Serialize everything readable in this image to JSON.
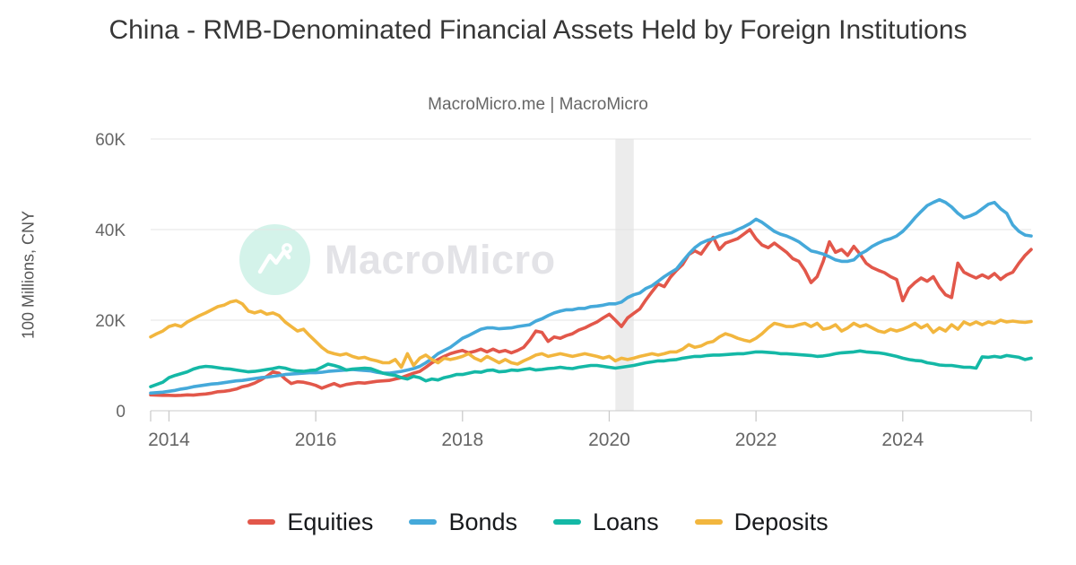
{
  "title": "China - RMB-Denominated Financial Assets Held by Foreign Institutions",
  "subtitle": "MacroMicro.me | MacroMicro",
  "watermark": "MacroMicro",
  "chart_data": {
    "type": "line",
    "title": "China - RMB-Denominated Financial Assets Held by Foreign Institutions",
    "subtitle": "MacroMicro.me | MacroMicro",
    "ylabel": "100 Millions, CNY",
    "xlabel": "",
    "frequency": "monthly",
    "x_start": "2013-10",
    "x_end": "2025-10",
    "ylim": [
      0,
      60000
    ],
    "grid": true,
    "legend_position": "bottom",
    "yticks": [
      {
        "value": 0,
        "label": "0"
      },
      {
        "value": 20000,
        "label": "20K"
      },
      {
        "value": 40000,
        "label": "40K"
      },
      {
        "value": 60000,
        "label": "60K"
      }
    ],
    "xticks": [
      {
        "x": "2014-01",
        "label": "2014"
      },
      {
        "x": "2016-01",
        "label": "2016"
      },
      {
        "x": "2018-01",
        "label": "2018"
      },
      {
        "x": "2020-01",
        "label": "2020"
      },
      {
        "x": "2022-01",
        "label": "2022"
      },
      {
        "x": "2024-01",
        "label": "2024"
      }
    ],
    "highlight_band": {
      "from": "2020-02",
      "to": "2020-05",
      "color": "#ececec"
    },
    "series": [
      {
        "name": "Equities",
        "color": "#e2574a",
        "values": [
          3500,
          3450,
          3400,
          3400,
          3350,
          3400,
          3500,
          3450,
          3600,
          3700,
          3900,
          4200,
          4300,
          4500,
          4800,
          5300,
          5600,
          6100,
          6800,
          7600,
          8600,
          8300,
          7000,
          6000,
          6400,
          6300,
          6000,
          5600,
          5000,
          5500,
          6000,
          5400,
          5800,
          6000,
          6200,
          6100,
          6300,
          6500,
          6600,
          6700,
          7000,
          7300,
          7800,
          8300,
          8700,
          9600,
          10600,
          11300,
          12000,
          12600,
          13000,
          13300,
          12800,
          13100,
          13600,
          13000,
          13600,
          13000,
          13300,
          12800,
          13300,
          14000,
          15600,
          17600,
          17300,
          15300,
          16300,
          16000,
          16600,
          17000,
          17800,
          18300,
          19000,
          19600,
          20500,
          21300,
          20000,
          18600,
          20500,
          21500,
          22500,
          24500,
          26300,
          28000,
          27400,
          29500,
          31000,
          32300,
          34500,
          35300,
          34600,
          36500,
          38300,
          35600,
          37000,
          37500,
          38000,
          39000,
          40000,
          38000,
          36600,
          36000,
          37000,
          36000,
          35000,
          33600,
          33000,
          31000,
          28300,
          29600,
          33000,
          37300,
          35000,
          35600,
          34300,
          36300,
          34600,
          32600,
          31600,
          31000,
          30500,
          29600,
          29000,
          24300,
          27000,
          28300,
          29300,
          28600,
          29600,
          27300,
          25600,
          25000,
          32600,
          30600,
          29900,
          29300,
          30000,
          29300,
          30300,
          29000,
          30000,
          30600,
          32600,
          34300,
          35600
        ]
      },
      {
        "name": "Bonds",
        "color": "#45a9da",
        "values": [
          3900,
          4000,
          4100,
          4300,
          4500,
          4800,
          5000,
          5300,
          5500,
          5700,
          5900,
          6000,
          6200,
          6400,
          6600,
          6700,
          6900,
          7100,
          7300,
          7400,
          7600,
          7800,
          8000,
          8100,
          8200,
          8300,
          8400,
          8400,
          8500,
          8700,
          8800,
          8900,
          9000,
          9100,
          9000,
          8900,
          8800,
          8500,
          8300,
          8300,
          8500,
          8700,
          9000,
          9300,
          9800,
          10600,
          11500,
          12600,
          13300,
          14000,
          15000,
          16000,
          16600,
          17300,
          18000,
          18300,
          18300,
          18100,
          18200,
          18300,
          18600,
          18800,
          19000,
          19800,
          20300,
          21000,
          21600,
          22000,
          22300,
          22300,
          22600,
          22600,
          23000,
          23100,
          23300,
          23600,
          23600,
          24000,
          25000,
          25600,
          26000,
          27000,
          27600,
          28600,
          29600,
          30500,
          31300,
          33000,
          34600,
          36000,
          37000,
          37600,
          38000,
          38600,
          39000,
          39300,
          40000,
          40600,
          41300,
          42300,
          41600,
          40600,
          39600,
          39000,
          38600,
          38000,
          37300,
          36300,
          35300,
          35000,
          34600,
          34000,
          33300,
          33000,
          33000,
          33300,
          34600,
          35300,
          36300,
          37000,
          37600,
          38000,
          38600,
          39600,
          41000,
          42600,
          44000,
          45300,
          46000,
          46600,
          46000,
          45000,
          43600,
          42600,
          43000,
          43600,
          44600,
          45600,
          46000,
          44600,
          43600,
          41000,
          39600,
          38800,
          38600
        ]
      },
      {
        "name": "Loans",
        "color": "#14b8a6",
        "values": [
          5300,
          5800,
          6300,
          7300,
          7800,
          8200,
          8600,
          9200,
          9600,
          9800,
          9700,
          9500,
          9300,
          9200,
          9000,
          8800,
          8600,
          8700,
          8900,
          9100,
          9300,
          9600,
          9400,
          9000,
          8800,
          8700,
          8900,
          9000,
          9600,
          10300,
          10000,
          9600,
          9000,
          9200,
          9300,
          9400,
          9300,
          8800,
          8300,
          8000,
          7800,
          7300,
          7000,
          7600,
          7300,
          6600,
          7000,
          6800,
          7300,
          7600,
          8000,
          8000,
          8300,
          8600,
          8500,
          8900,
          9000,
          8600,
          8700,
          9000,
          8900,
          9100,
          9300,
          9000,
          9100,
          9300,
          9400,
          9600,
          9400,
          9300,
          9600,
          9800,
          10000,
          10000,
          9800,
          9600,
          9400,
          9600,
          9800,
          10000,
          10300,
          10600,
          10800,
          11000,
          11000,
          11200,
          11300,
          11600,
          11800,
          12000,
          12000,
          12200,
          12300,
          12300,
          12400,
          12500,
          12600,
          12600,
          12800,
          13000,
          13000,
          12900,
          12800,
          12600,
          12600,
          12500,
          12400,
          12300,
          12200,
          12000,
          12100,
          12300,
          12600,
          12800,
          12900,
          13000,
          13200,
          13000,
          12900,
          12800,
          12600,
          12300,
          12000,
          11600,
          11300,
          11100,
          11000,
          10600,
          10400,
          10100,
          10000,
          10000,
          9800,
          9600,
          9600,
          9400,
          11900,
          11800,
          12000,
          11800,
          12200,
          12000,
          11800,
          11300,
          11600
        ]
      },
      {
        "name": "Deposits",
        "color": "#f2b63e",
        "values": [
          16300,
          17000,
          17600,
          18600,
          19000,
          18600,
          19600,
          20300,
          21000,
          21600,
          22300,
          23000,
          23300,
          24000,
          24300,
          23600,
          22000,
          21600,
          22000,
          21300,
          21600,
          21000,
          19600,
          18600,
          17600,
          18000,
          16600,
          15300,
          14000,
          13000,
          12600,
          12300,
          12600,
          12000,
          11600,
          11800,
          11300,
          11000,
          10600,
          10600,
          11300,
          9600,
          12600,
          10000,
          11600,
          12300,
          11300,
          10600,
          11600,
          11300,
          11600,
          12000,
          12600,
          11600,
          11000,
          12000,
          11300,
          10600,
          11300,
          10600,
          10300,
          11000,
          11600,
          12300,
          12600,
          12000,
          12300,
          12600,
          12300,
          12000,
          12300,
          12600,
          12300,
          12000,
          11600,
          12000,
          11000,
          11600,
          11300,
          11600,
          12000,
          12300,
          12600,
          12300,
          12600,
          13000,
          13000,
          13600,
          14600,
          14000,
          14300,
          15000,
          15300,
          16300,
          17000,
          16600,
          16000,
          15600,
          15300,
          16000,
          17000,
          18300,
          19300,
          19000,
          18600,
          18600,
          19000,
          19300,
          18600,
          19300,
          18000,
          18300,
          19000,
          17600,
          18300,
          19300,
          18600,
          19000,
          18300,
          17600,
          17300,
          18000,
          17600,
          18000,
          18600,
          19300,
          18300,
          19000,
          17300,
          18300,
          17600,
          19000,
          18000,
          19600,
          19000,
          19600,
          19000,
          19600,
          19300,
          20000,
          19600,
          19800,
          19600,
          19500,
          19700
        ]
      }
    ]
  }
}
